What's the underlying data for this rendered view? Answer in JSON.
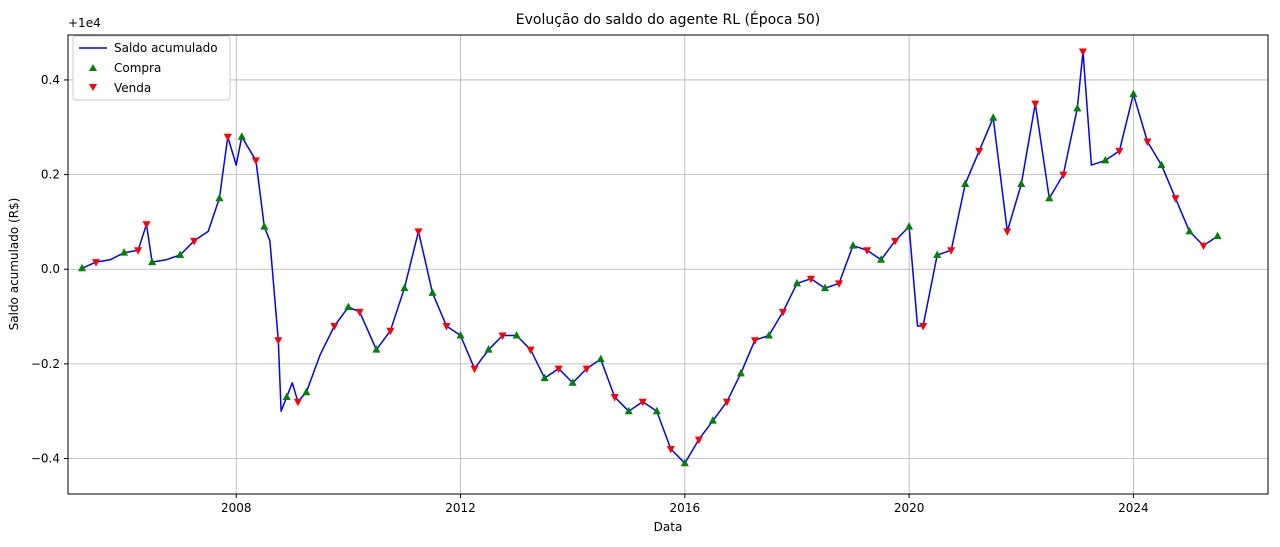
{
  "chart_data": {
    "type": "line",
    "title": "Evolução do saldo do agente RL (Época 50)",
    "xlabel": "Data",
    "ylabel": "Saldo acumulado (R$)",
    "y_offset_label": "+1e4",
    "xlim": [
      2005.0,
      2026.4
    ],
    "ylim": [
      0.9525,
      1.0495
    ],
    "x_ticks": [
      2008,
      2012,
      2016,
      2020,
      2024
    ],
    "y_ticks": [
      -0.4,
      -0.2,
      0.0,
      0.2,
      0.4
    ],
    "x_tick_labels": [
      "2008",
      "2012",
      "2016",
      "2020",
      "2024"
    ],
    "y_tick_labels": [
      "−0.4",
      "−0.2",
      "0.0",
      "0.2",
      "0.4"
    ],
    "grid": true,
    "legend_position": "top-left",
    "series": [
      {
        "name": "Saldo acumulado",
        "kind": "line",
        "color": "#0000ff"
      },
      {
        "name": "Compra",
        "kind": "marker",
        "marker": "triangle-up",
        "color": "#008000"
      },
      {
        "name": "Venda",
        "kind": "marker",
        "marker": "triangle-down",
        "color": "#ff0000"
      }
    ],
    "x": [
      2005.25,
      2005.5,
      2005.75,
      2006.0,
      2006.25,
      2006.4,
      2006.5,
      2006.75,
      2007.0,
      2007.25,
      2007.5,
      2007.7,
      2007.85,
      2008.0,
      2008.1,
      2008.2,
      2008.35,
      2008.5,
      2008.6,
      2008.75,
      2008.8,
      2008.9,
      2009.0,
      2009.1,
      2009.25,
      2009.5,
      2009.75,
      2010.0,
      2010.2,
      2010.5,
      2010.75,
      2011.0,
      2011.25,
      2011.5,
      2011.75,
      2012.0,
      2012.25,
      2012.5,
      2012.75,
      2013.0,
      2013.25,
      2013.5,
      2013.75,
      2014.0,
      2014.25,
      2014.5,
      2014.75,
      2015.0,
      2015.25,
      2015.5,
      2015.75,
      2016.0,
      2016.25,
      2016.5,
      2016.75,
      2017.0,
      2017.25,
      2017.5,
      2017.75,
      2018.0,
      2018.25,
      2018.5,
      2018.75,
      2019.0,
      2019.25,
      2019.5,
      2019.75,
      2020.0,
      2020.15,
      2020.25,
      2020.5,
      2020.75,
      2021.0,
      2021.25,
      2021.5,
      2021.75,
      2022.0,
      2022.25,
      2022.5,
      2022.75,
      2023.0,
      2023.1,
      2023.25,
      2023.5,
      2023.75,
      2024.0,
      2024.25,
      2024.5,
      2024.75,
      2025.0,
      2025.25,
      2025.5
    ],
    "y": [
      1.0002,
      1.0015,
      1.002,
      1.0035,
      1.004,
      1.0095,
      1.0015,
      1.002,
      1.003,
      1.006,
      1.008,
      1.015,
      1.028,
      1.022,
      1.028,
      1.026,
      1.023,
      1.009,
      1.006,
      0.985,
      0.97,
      0.973,
      0.976,
      0.972,
      0.974,
      0.982,
      0.988,
      0.992,
      0.991,
      0.983,
      0.987,
      0.996,
      1.008,
      0.995,
      0.988,
      0.986,
      0.979,
      0.983,
      0.986,
      0.986,
      0.983,
      0.977,
      0.979,
      0.976,
      0.979,
      0.981,
      0.973,
      0.97,
      0.972,
      0.97,
      0.962,
      0.959,
      0.964,
      0.968,
      0.972,
      0.978,
      0.985,
      0.986,
      0.991,
      0.997,
      0.998,
      0.996,
      0.997,
      1.005,
      1.004,
      1.002,
      1.006,
      1.009,
      0.988,
      0.988,
      1.003,
      1.004,
      1.018,
      1.025,
      1.032,
      1.008,
      1.018,
      1.035,
      1.015,
      1.02,
      1.034,
      1.046,
      1.022,
      1.023,
      1.025,
      1.037,
      1.027,
      1.022,
      1.015,
      1.008,
      1.005,
      1.007
    ],
    "buy_x": [
      2005.25,
      2006.0,
      2006.5,
      2007.0,
      2007.7,
      2008.1,
      2008.5,
      2008.9,
      2009.25,
      2010.0,
      2010.5,
      2011.0,
      2011.5,
      2012.0,
      2012.5,
      2013.0,
      2013.5,
      2014.0,
      2014.5,
      2015.0,
      2015.5,
      2016.0,
      2016.5,
      2017.0,
      2017.5,
      2018.0,
      2018.5,
      2019.0,
      2019.5,
      2020.0,
      2020.5,
      2021.0,
      2021.5,
      2022.0,
      2022.5,
      2023.0,
      2023.5,
      2024.0,
      2024.5,
      2025.0,
      2025.5
    ],
    "buy_y": [
      1.0002,
      1.0035,
      1.0015,
      1.003,
      1.015,
      1.028,
      1.009,
      0.973,
      0.974,
      0.992,
      0.983,
      0.996,
      0.995,
      0.986,
      0.983,
      0.986,
      0.977,
      0.976,
      0.981,
      0.97,
      0.97,
      0.959,
      0.968,
      0.978,
      0.986,
      0.997,
      0.996,
      1.005,
      1.002,
      1.009,
      1.003,
      1.018,
      1.032,
      1.018,
      1.015,
      1.034,
      1.023,
      1.037,
      1.022,
      1.008,
      1.007
    ],
    "sell_x": [
      2005.5,
      2006.25,
      2006.4,
      2007.25,
      2007.85,
      2008.35,
      2008.75,
      2009.1,
      2009.75,
      2010.2,
      2010.75,
      2011.25,
      2011.75,
      2012.25,
      2012.75,
      2013.25,
      2013.75,
      2014.25,
      2014.75,
      2015.25,
      2015.75,
      2016.25,
      2016.75,
      2017.25,
      2017.75,
      2018.25,
      2018.75,
      2019.25,
      2019.75,
      2020.25,
      2020.75,
      2021.25,
      2021.75,
      2022.25,
      2022.75,
      2023.1,
      2023.75,
      2024.25,
      2024.75,
      2025.25
    ],
    "sell_y": [
      1.0015,
      1.004,
      1.0095,
      1.006,
      1.028,
      1.023,
      0.985,
      0.972,
      0.988,
      0.991,
      0.987,
      1.008,
      0.988,
      0.979,
      0.986,
      0.983,
      0.979,
      0.979,
      0.973,
      0.972,
      0.962,
      0.964,
      0.972,
      0.985,
      0.991,
      0.998,
      0.997,
      1.004,
      1.006,
      0.988,
      1.004,
      1.025,
      1.008,
      1.035,
      1.02,
      1.046,
      1.025,
      1.027,
      1.015,
      1.005
    ]
  }
}
